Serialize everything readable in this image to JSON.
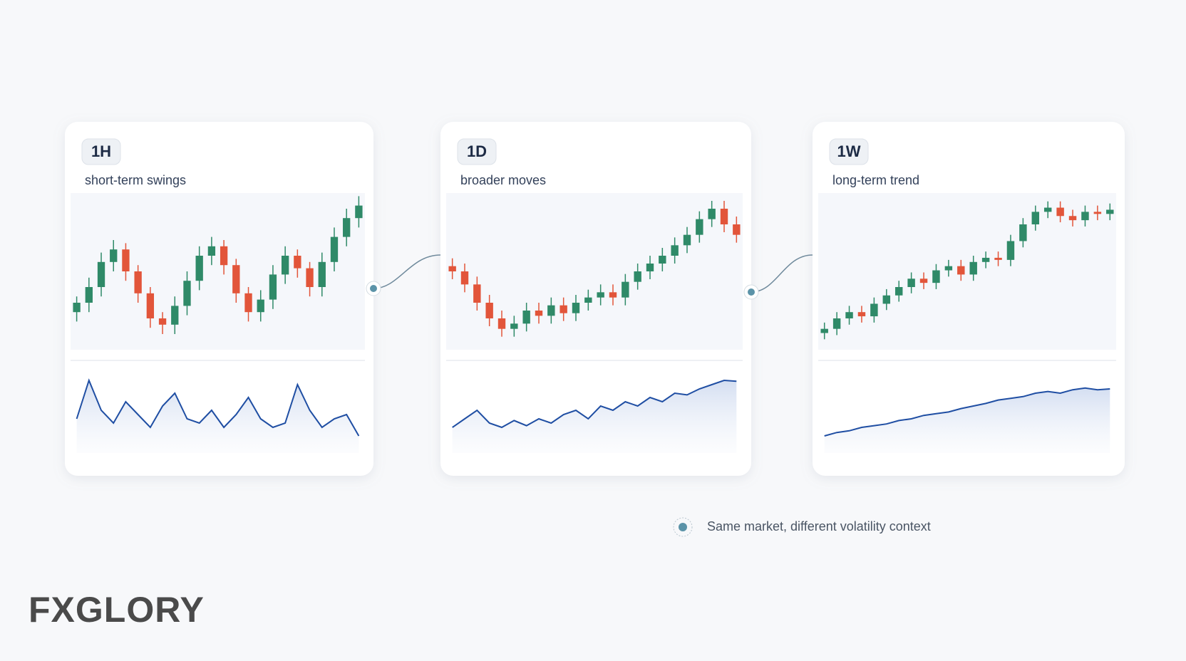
{
  "chart_data": [
    {
      "type": "candlestick",
      "title": "1H",
      "subtitle": "short-term swings",
      "ylim": [
        30,
        80
      ],
      "vol_ylim": [
        0,
        100
      ],
      "up_color": "#2f8a68",
      "down_color": "#e2553a",
      "line_color": "#1f4ea3",
      "open": [
        42,
        45,
        50,
        58,
        62,
        55,
        48,
        40,
        38,
        44,
        52,
        60,
        63,
        57,
        48,
        42,
        46,
        54,
        60,
        56,
        50,
        58,
        66,
        72
      ],
      "high": [
        47,
        53,
        61,
        65,
        64,
        57,
        50,
        42,
        47,
        55,
        63,
        66,
        65,
        59,
        50,
        49,
        57,
        63,
        62,
        58,
        61,
        69,
        75,
        79
      ],
      "low": [
        39,
        42,
        47,
        55,
        52,
        45,
        37,
        35,
        35,
        41,
        49,
        57,
        54,
        45,
        39,
        39,
        43,
        51,
        53,
        47,
        47,
        55,
        63,
        69
      ],
      "close": [
        45,
        50,
        58,
        62,
        55,
        48,
        40,
        38,
        44,
        52,
        60,
        63,
        57,
        48,
        42,
        46,
        54,
        60,
        56,
        50,
        58,
        66,
        72,
        76
      ],
      "volatility": [
        40,
        85,
        50,
        35,
        60,
        45,
        30,
        55,
        70,
        40,
        35,
        50,
        30,
        45,
        65,
        40,
        30,
        35,
        80,
        50,
        30,
        40,
        45,
        20
      ]
    },
    {
      "type": "candlestick",
      "title": "1D",
      "subtitle": "broader moves",
      "ylim": [
        30,
        90
      ],
      "vol_ylim": [
        0,
        100
      ],
      "up_color": "#2f8a68",
      "down_color": "#e2553a",
      "line_color": "#1f4ea3",
      "open": [
        62,
        60,
        55,
        48,
        42,
        38,
        40,
        45,
        43,
        47,
        44,
        48,
        50,
        52,
        50,
        56,
        60,
        63,
        66,
        70,
        74,
        80,
        84,
        78
      ],
      "high": [
        65,
        63,
        58,
        51,
        45,
        43,
        48,
        48,
        50,
        50,
        51,
        53,
        55,
        55,
        59,
        63,
        66,
        69,
        73,
        77,
        83,
        87,
        87,
        81
      ],
      "low": [
        57,
        52,
        45,
        39,
        35,
        35,
        37,
        40,
        40,
        41,
        41,
        45,
        47,
        47,
        47,
        53,
        57,
        60,
        63,
        67,
        71,
        77,
        75,
        71
      ],
      "close": [
        60,
        55,
        48,
        42,
        38,
        40,
        45,
        43,
        47,
        44,
        48,
        50,
        52,
        50,
        56,
        60,
        63,
        66,
        70,
        74,
        80,
        84,
        78,
        74
      ],
      "volatility": [
        30,
        40,
        50,
        35,
        30,
        38,
        32,
        40,
        35,
        45,
        50,
        40,
        55,
        50,
        60,
        55,
        65,
        60,
        70,
        68,
        75,
        80,
        85,
        84
      ]
    },
    {
      "type": "candlestick",
      "title": "1W",
      "subtitle": "long-term trend",
      "ylim": [
        20,
        95
      ],
      "vol_ylim": [
        0,
        100
      ],
      "up_color": "#2f8a68",
      "down_color": "#e2553a",
      "line_color": "#1f4ea3",
      "open": [
        28,
        30,
        35,
        38,
        36,
        42,
        46,
        50,
        54,
        52,
        58,
        60,
        56,
        62,
        64,
        63,
        72,
        80,
        86,
        88,
        84,
        82,
        86,
        85
      ],
      "high": [
        33,
        38,
        41,
        41,
        45,
        49,
        53,
        57,
        57,
        61,
        63,
        63,
        65,
        67,
        67,
        75,
        83,
        89,
        91,
        91,
        87,
        89,
        89,
        90
      ],
      "low": [
        25,
        27,
        32,
        33,
        33,
        39,
        43,
        47,
        49,
        49,
        55,
        53,
        53,
        59,
        60,
        60,
        69,
        77,
        83,
        81,
        79,
        79,
        82,
        82
      ],
      "close": [
        30,
        35,
        38,
        36,
        42,
        46,
        50,
        54,
        52,
        58,
        60,
        56,
        62,
        64,
        63,
        72,
        80,
        86,
        88,
        84,
        82,
        86,
        85,
        87
      ],
      "volatility": [
        20,
        24,
        26,
        30,
        32,
        34,
        38,
        40,
        44,
        46,
        48,
        52,
        55,
        58,
        62,
        64,
        66,
        70,
        72,
        70,
        74,
        76,
        74,
        75
      ]
    }
  ],
  "note": "Same market, different volatility context",
  "logo": "FXGLORY"
}
